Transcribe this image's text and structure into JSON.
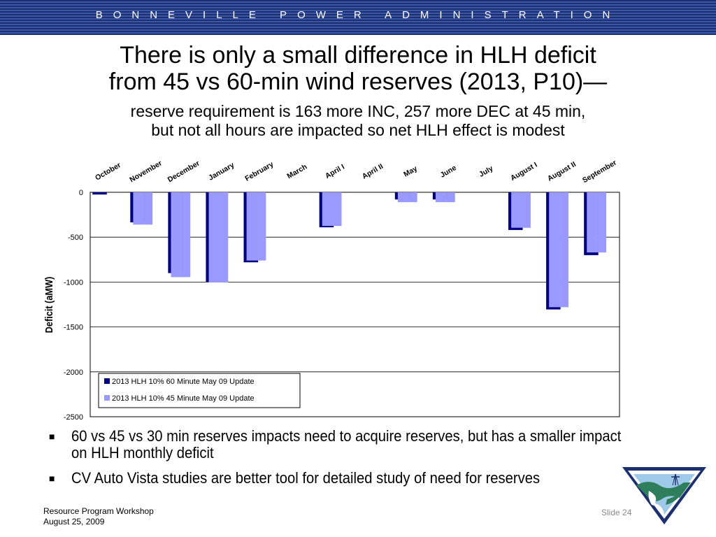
{
  "banner": {
    "text": "BONNEVILLE POWER ADMINISTRATION"
  },
  "slide": {
    "title_line1": "There is only a small difference in HLH deficit",
    "title_line2": "from 45 vs 60-min wind reserves (2013, P10)—",
    "subtitle_line1": "reserve requirement is 163 more INC, 257 more DEC at 45 min,",
    "subtitle_line2": "but not all hours are impacted so net HLH effect is modest"
  },
  "chart_data": {
    "type": "bar",
    "title": "",
    "xlabel": "",
    "ylabel": "Deficit (aMW)",
    "ylim": [
      -2500,
      0
    ],
    "yticks": [
      0,
      -500,
      -1000,
      -1500,
      -2000,
      -2500
    ],
    "grid": true,
    "legend_position": "bottom-left",
    "categories": [
      "October",
      "November",
      "December",
      "January",
      "February",
      "March",
      "April I",
      "April II",
      "May",
      "June",
      "July",
      "August I",
      "August II",
      "September"
    ],
    "series": [
      {
        "name": "2013 HLH 10% 60 Minute May 09 Update",
        "color": "#000080",
        "values": [
          -25,
          -335,
          -900,
          -1000,
          -780,
          0,
          -390,
          0,
          -80,
          -80,
          0,
          -420,
          -1305,
          -700
        ]
      },
      {
        "name": "2013 HLH 10% 45 Minute May 09 Update",
        "color": "#9999ff",
        "values": [
          0,
          -360,
          -945,
          -1005,
          -760,
          0,
          -375,
          0,
          -110,
          -110,
          0,
          -395,
          -1280,
          -670
        ]
      }
    ]
  },
  "bullets": [
    "60 vs 45 vs 30 min reserves impacts need to acquire reserves, but has a smaller impact on HLH monthly deficit",
    "CV Auto Vista studies are better tool for detailed study of need for reserves"
  ],
  "bullet_symbol": "■",
  "footer": {
    "line1": "Resource Program Workshop",
    "line2": "August 25, 2009",
    "slide_number": "Slide 24"
  },
  "logo": {
    "icon": "bpa-logo-icon"
  }
}
